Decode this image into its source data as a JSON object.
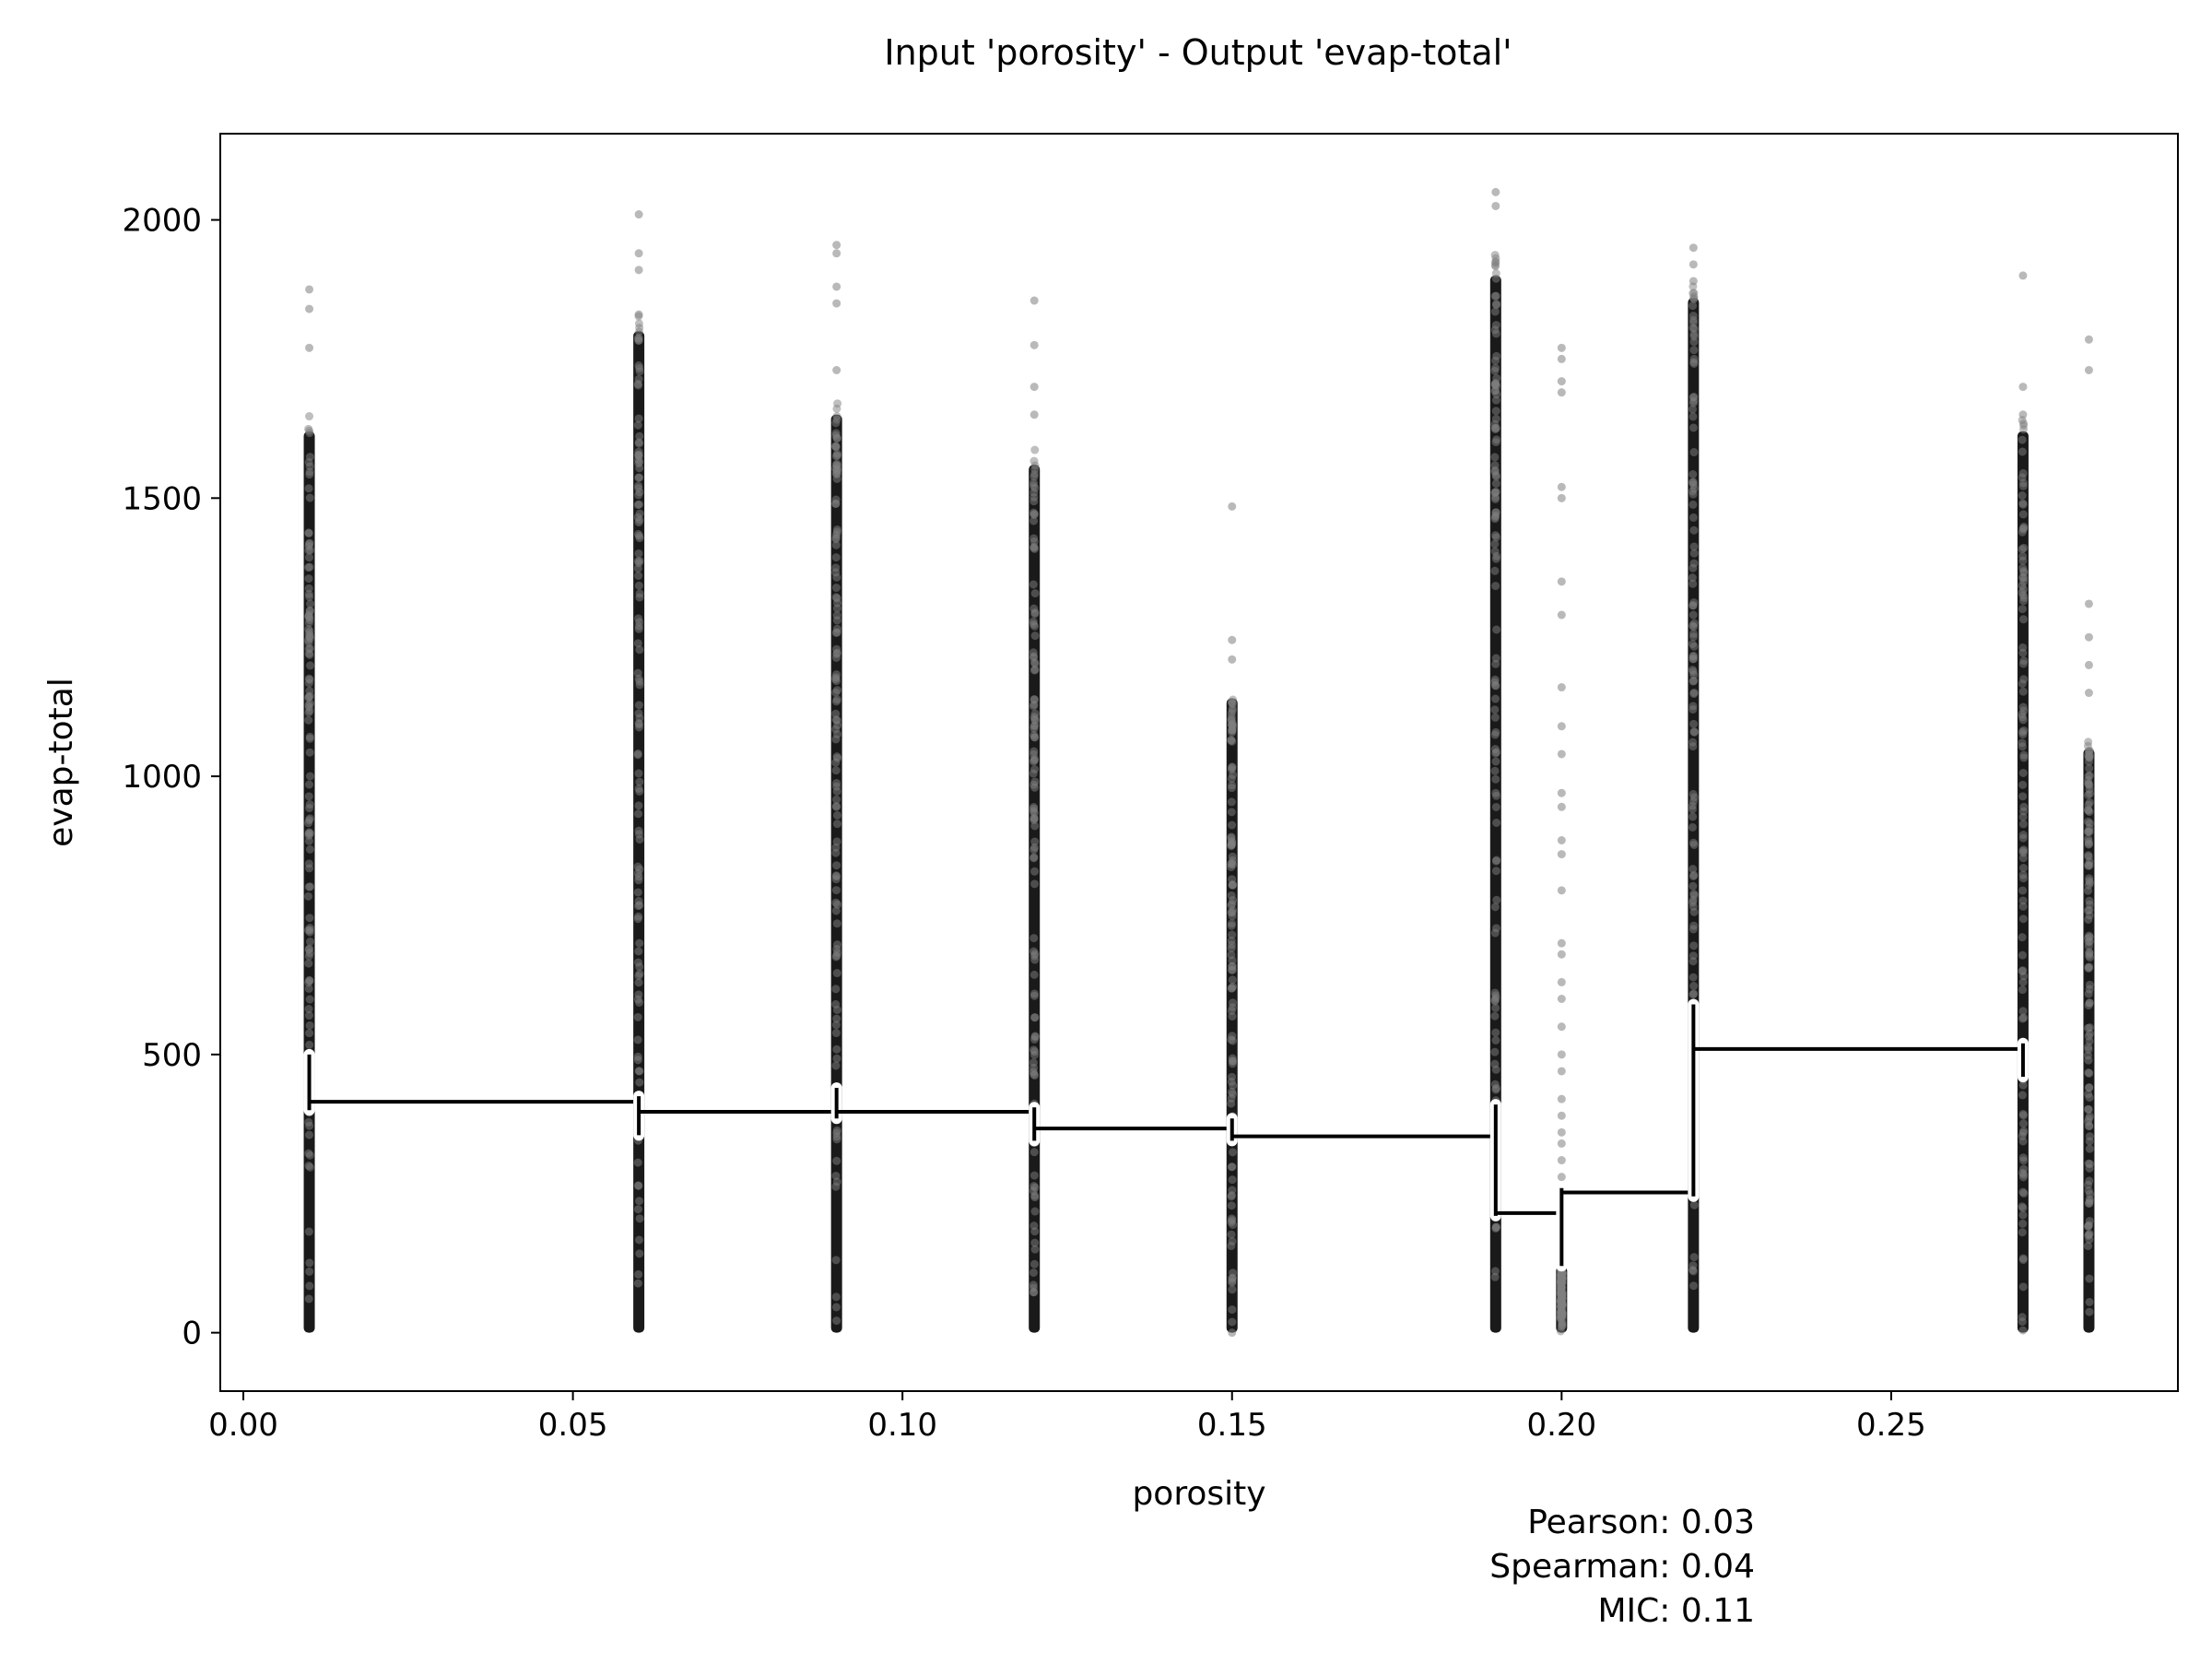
{
  "chart_data": {
    "type": "scatter",
    "title": "Input 'porosity' - Output 'evap-total'",
    "xlabel": "porosity",
    "ylabel": "evap-total",
    "xlim": [
      -0.0035,
      0.2935
    ],
    "ylim": [
      -105,
      2155
    ],
    "xticks": [
      0.0,
      0.05,
      0.1,
      0.15,
      0.2,
      0.25
    ],
    "xtick_labels": [
      "0.00",
      "0.05",
      "0.10",
      "0.15",
      "0.20",
      "0.25"
    ],
    "yticks": [
      0,
      500,
      1000,
      1500,
      2000
    ],
    "ytick_labels": [
      "0",
      "500",
      "1000",
      "1500",
      "2000"
    ],
    "grid": false,
    "point_color": "#808080",
    "line_color": "#000000",
    "scatter_columns": [
      {
        "x": 0.01,
        "ymin": 0,
        "dense_max": 1620,
        "max": 1875,
        "outliers": [
          1770,
          1840,
          1875
        ]
      },
      {
        "x": 0.06,
        "ymin": 0,
        "dense_max": 1800,
        "max": 2010,
        "outliers": [
          1830,
          1910,
          1940,
          2010
        ]
      },
      {
        "x": 0.09,
        "ymin": 0,
        "dense_max": 1650,
        "max": 1955,
        "outliers": [
          1730,
          1850,
          1880,
          1940,
          1955
        ]
      },
      {
        "x": 0.12,
        "ymin": 0,
        "dense_max": 1560,
        "max": 1855,
        "outliers": [
          1650,
          1700,
          1775,
          1855
        ]
      },
      {
        "x": 0.15,
        "ymin": 0,
        "dense_max": 1140,
        "max": 1485,
        "outliers": [
          1210,
          1245,
          1485,
          90,
          0
        ]
      },
      {
        "x": 0.19,
        "ymin": 0,
        "dense_max": 1900,
        "max": 2050,
        "outliers": [
          1925,
          2025,
          2050
        ]
      },
      {
        "x": 0.2,
        "ymin": 0,
        "dense_max": 120,
        "max": 1770,
        "outliers": [
          1770,
          1750,
          1710,
          1690,
          1520,
          1500,
          1350,
          1290,
          1160,
          1090,
          1040,
          970,
          945,
          885,
          860,
          795,
          700,
          680,
          630,
          600,
          550,
          500,
          470,
          420,
          390,
          360,
          340,
          310,
          280,
          250,
          220,
          200,
          170,
          150
        ]
      },
      {
        "x": 0.22,
        "ymin": 0,
        "dense_max": 1860,
        "max": 1950,
        "outliers": [
          1890,
          1920,
          1950
        ]
      },
      {
        "x": 0.27,
        "ymin": 0,
        "dense_max": 1620,
        "max": 1900,
        "outliers": [
          1650,
          1700,
          1900
        ]
      },
      {
        "x": 0.28,
        "ymin": 0,
        "dense_max": 1050,
        "max": 1785,
        "outliers": [
          1150,
          1200,
          1250,
          1310,
          1730,
          1785
        ]
      }
    ],
    "step_line": [
      {
        "x_start": 0.01,
        "x_end": 0.06,
        "y": 415,
        "err_lo": 400,
        "err_hi": 500
      },
      {
        "x_start": 0.06,
        "x_end": 0.09,
        "y": 397,
        "err_lo": 355,
        "err_hi": 425
      },
      {
        "x_start": 0.09,
        "x_end": 0.12,
        "y": 397,
        "err_lo": 385,
        "err_hi": 440
      },
      {
        "x_start": 0.12,
        "x_end": 0.15,
        "y": 367,
        "err_lo": 345,
        "err_hi": 405
      },
      {
        "x_start": 0.15,
        "x_end": 0.19,
        "y": 353,
        "err_lo": 345,
        "err_hi": 385
      },
      {
        "x_start": 0.19,
        "x_end": 0.2,
        "y": 215,
        "err_lo": 210,
        "err_hi": 410
      },
      {
        "x_start": 0.2,
        "x_end": 0.22,
        "y": 252,
        "err_lo": 120,
        "err_hi": 260
      },
      {
        "x_start": 0.22,
        "x_end": 0.27,
        "y": 510,
        "err_lo": 245,
        "err_hi": 590
      },
      {
        "x_start": 0.27,
        "x_end": 0.27,
        "y": 510,
        "err_lo": 460,
        "err_hi": 520
      }
    ]
  },
  "stats": {
    "pearson": "Pearson: 0.03",
    "spearman": "Spearman: 0.04",
    "mic": "MIC: 0.11"
  }
}
